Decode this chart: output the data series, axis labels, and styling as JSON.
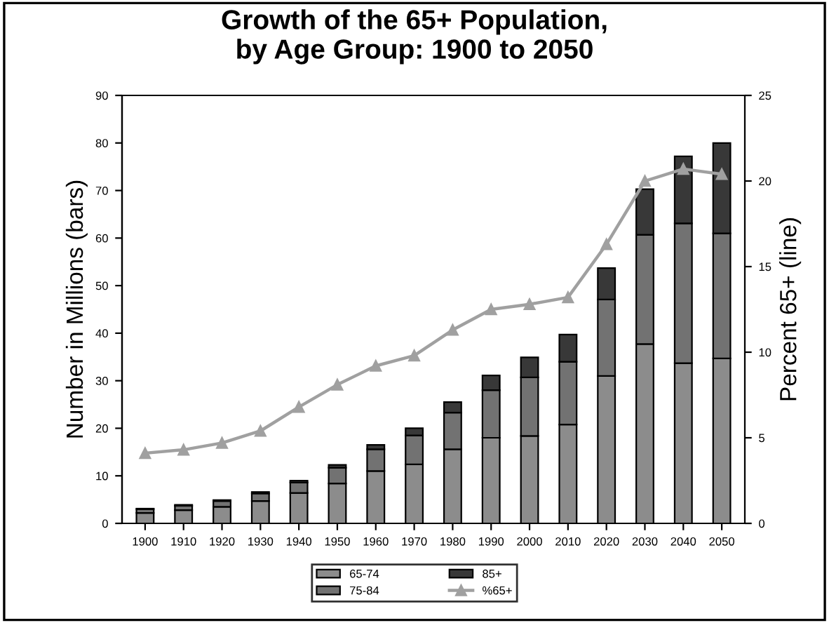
{
  "chart_data": {
    "type": "bar",
    "title": "Growth of the 65+ Population,\nby Age Group: 1900 to 2050",
    "ylabel": "Number in Millions (bars)",
    "y2label": "Percent 65+ (line)",
    "categories": [
      "1900",
      "1910",
      "1920",
      "1930",
      "1940",
      "1950",
      "1960",
      "1970",
      "1980",
      "1990",
      "2000",
      "2010",
      "2020",
      "2030",
      "2040",
      "2050"
    ],
    "stacked": true,
    "series": [
      {
        "name": "65-74",
        "color": "#8c8c8c",
        "values": [
          2.2,
          2.8,
          3.5,
          4.7,
          6.4,
          8.4,
          11.0,
          12.4,
          15.6,
          18.0,
          18.4,
          20.8,
          31.0,
          37.7,
          33.7,
          34.7
        ]
      },
      {
        "name": "75-84",
        "color": "#727272",
        "values": [
          0.8,
          0.9,
          1.2,
          1.6,
          2.2,
          3.3,
          4.6,
          6.1,
          7.7,
          10.0,
          12.3,
          13.2,
          16.1,
          23.0,
          29.4,
          26.3
        ]
      },
      {
        "name": "85+",
        "color": "#383838",
        "values": [
          0.1,
          0.2,
          0.2,
          0.3,
          0.4,
          0.6,
          0.9,
          1.5,
          2.2,
          3.1,
          4.2,
          5.7,
          6.6,
          9.6,
          14.1,
          19.0
        ]
      },
      {
        "name": "%65+",
        "type": "line",
        "axis": "y2",
        "color": "#a0a0a0",
        "marker": "triangle",
        "values": [
          4.1,
          4.3,
          4.7,
          5.4,
          6.8,
          8.1,
          9.2,
          9.8,
          11.3,
          12.5,
          12.8,
          13.2,
          16.3,
          20.0,
          20.7,
          20.4
        ]
      }
    ],
    "ylim": [
      0,
      90
    ],
    "yticks": [
      0,
      10,
      20,
      30,
      40,
      50,
      60,
      70,
      80,
      90
    ],
    "y2lim": [
      0,
      25
    ],
    "y2ticks": [
      0,
      5,
      10,
      15,
      20,
      25
    ],
    "legend": "bottom",
    "grid": false
  }
}
